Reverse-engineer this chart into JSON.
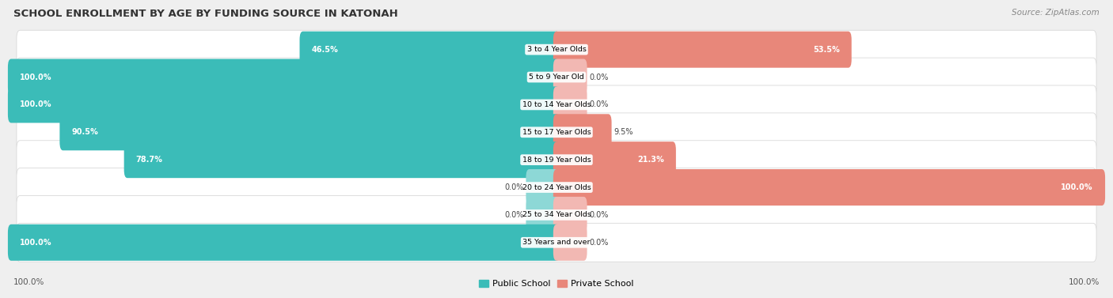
{
  "title": "SCHOOL ENROLLMENT BY AGE BY FUNDING SOURCE IN KATONAH",
  "source": "Source: ZipAtlas.com",
  "categories": [
    "3 to 4 Year Olds",
    "5 to 9 Year Old",
    "10 to 14 Year Olds",
    "15 to 17 Year Olds",
    "18 to 19 Year Olds",
    "20 to 24 Year Olds",
    "25 to 34 Year Olds",
    "35 Years and over"
  ],
  "public_pct": [
    46.5,
    100.0,
    100.0,
    90.5,
    78.7,
    0.0,
    0.0,
    100.0
  ],
  "private_pct": [
    53.5,
    0.0,
    0.0,
    9.5,
    21.3,
    100.0,
    0.0,
    0.0
  ],
  "public_color": "#3bbcb8",
  "private_color": "#e8877a",
  "public_color_zero": "#8dd8d6",
  "private_color_zero": "#f2b8b3",
  "bg_color": "#efefef",
  "bar_bg_color": "#ffffff",
  "title_color": "#333333",
  "source_color": "#888888",
  "label_color": "#555555",
  "x_left_label": "100.0%",
  "x_right_label": "100.0%",
  "legend_public": "Public School",
  "legend_private": "Private School"
}
